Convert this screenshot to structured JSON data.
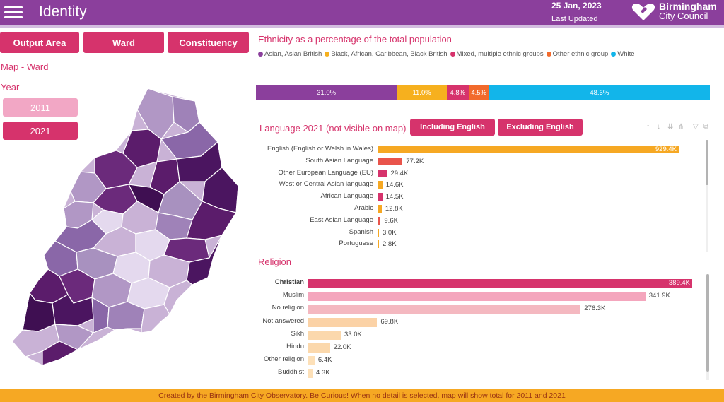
{
  "header": {
    "title": "Identity",
    "date": "25 Jan, 2023",
    "last_updated": "Last Updated",
    "logo_line1": "Birmingham",
    "logo_line2": "City Council",
    "bg_color": "#8b3f9c"
  },
  "left_panel": {
    "buttons": [
      "Output Area",
      "Ward",
      "Constituency"
    ],
    "map_title": "Map - Ward",
    "year_label": "Year",
    "years": [
      "2011",
      "2021"
    ],
    "selected_year": "2021"
  },
  "ethnicity": {
    "title": "Ethnicity as a percentage of the total population",
    "legend": [
      {
        "label": "Asian, Asian British",
        "color": "#8b3f9c"
      },
      {
        "label": "Black, African, Caribbean, Black British",
        "color": "#f6b01e"
      },
      {
        "label": "Mixed, multiple ethnic groups",
        "color": "#d6336c"
      },
      {
        "label": "Other ethnic group",
        "color": "#f26a2c"
      },
      {
        "label": "White",
        "color": "#12b5ea"
      }
    ],
    "segments": [
      {
        "label": "31.0%",
        "value": 31.0,
        "color": "#8b3f9c"
      },
      {
        "label": "11.0%",
        "value": 11.0,
        "color": "#f6b01e"
      },
      {
        "label": "4.8%",
        "value": 4.8,
        "color": "#d6336c"
      },
      {
        "label": "4.5%",
        "value": 4.5,
        "color": "#f26a2c"
      },
      {
        "label": "48.6%",
        "value": 48.6,
        "color": "#12b5ea"
      }
    ]
  },
  "language": {
    "title": "Language 2021 (not visible on map)",
    "toggle_buttons": [
      "Including English",
      "Excluding English"
    ],
    "tool_icons": [
      "sort-up-icon",
      "sort-down-icon",
      "drill-down-icon",
      "expand-all-icon",
      "filter-icon",
      "focus-mode-icon"
    ],
    "max": 929.4,
    "rows": [
      {
        "label": "English (English or Welsh in Wales)",
        "value": 929.4,
        "value_label": "929.4K",
        "color": "#f6a823"
      },
      {
        "label": "South Asian Language",
        "value": 77.2,
        "value_label": "77.2K",
        "color": "#e9544b"
      },
      {
        "label": "Other European Language (EU)",
        "value": 29.4,
        "value_label": "29.4K",
        "color": "#d6336c"
      },
      {
        "label": "West or Central Asian language",
        "value": 14.6,
        "value_label": "14.6K",
        "color": "#f6a823"
      },
      {
        "label": "African Language",
        "value": 14.5,
        "value_label": "14.5K",
        "color": "#d6336c"
      },
      {
        "label": "Arabic",
        "value": 12.8,
        "value_label": "12.8K",
        "color": "#f6a823"
      },
      {
        "label": "East Asian Language",
        "value": 9.6,
        "value_label": "9.6K",
        "color": "#e9544b"
      },
      {
        "label": "Spanish",
        "value": 3.0,
        "value_label": "3.0K",
        "color": "#f6a823"
      },
      {
        "label": "Portuguese",
        "value": 2.8,
        "value_label": "2.8K",
        "color": "#f6a823"
      }
    ]
  },
  "religion": {
    "title": "Religion",
    "max": 389.4,
    "rows": [
      {
        "label": "Christian",
        "value": 389.4,
        "value_label": "389.4K",
        "color": "#d6336c"
      },
      {
        "label": "Muslim",
        "value": 341.9,
        "value_label": "341.9K",
        "color": "#f4a6bd"
      },
      {
        "label": "No religion",
        "value": 276.3,
        "value_label": "276.3K",
        "color": "#f4b8c0"
      },
      {
        "label": "Not answered",
        "value": 69.8,
        "value_label": "69.8K",
        "color": "#fbd2a6"
      },
      {
        "label": "Sikh",
        "value": 33.0,
        "value_label": "33.0K",
        "color": "#fbd8ac"
      },
      {
        "label": "Hindu",
        "value": 22.0,
        "value_label": "22.0K",
        "color": "#fbd8ac"
      },
      {
        "label": "Other religion",
        "value": 6.4,
        "value_label": "6.4K",
        "color": "#fde0b8"
      },
      {
        "label": "Buddhist",
        "value": 4.3,
        "value_label": "4.3K",
        "color": "#fde0b8"
      }
    ]
  },
  "footer": {
    "text": "Created by the Birmingham City Observatory. Be Curious! When no detail is selected, map will show total for 2011 and 2021",
    "bg_color": "#f6a823"
  }
}
